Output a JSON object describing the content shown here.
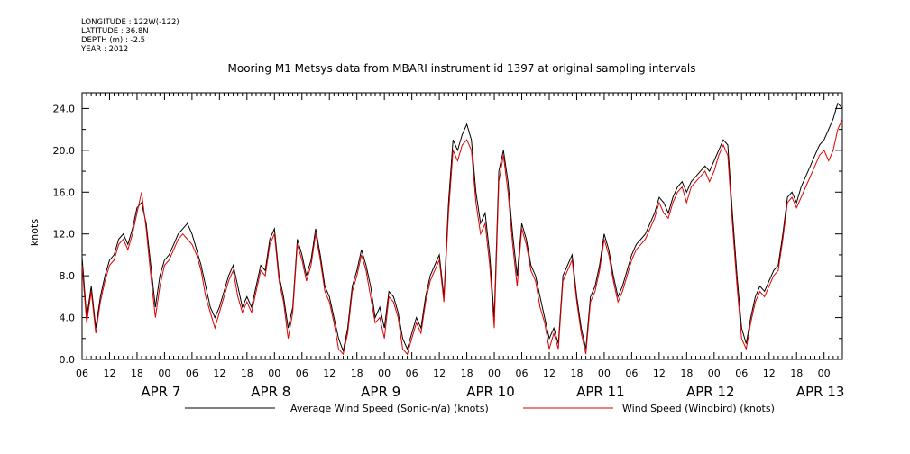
{
  "header": {
    "longitude": "LONGITUDE : 122W(-122)",
    "latitude": "LATITUDE : 36.8N",
    "depth": "DEPTH (m) : -2.5",
    "year": "YEAR : 2012"
  },
  "chart_data": {
    "type": "line",
    "title": "Mooring M1 Metsys data from MBARI instrument id 1397 at original sampling intervals",
    "ylabel": "knots",
    "xlabel": "",
    "ylim": [
      0,
      25.5
    ],
    "xlim": [
      0,
      166
    ],
    "x_unit_note": "hours",
    "yticks": [
      "0.0",
      "4.0",
      "8.0",
      "12.0",
      "16.0",
      "20.0",
      "24.0"
    ],
    "xtick_labels": [
      "06",
      "12",
      "18",
      "00",
      "06",
      "12",
      "18",
      "00",
      "06",
      "12",
      "18",
      "00",
      "06",
      "12",
      "18",
      "00",
      "06",
      "12",
      "18",
      "00",
      "06",
      "12",
      "18",
      "00",
      "06",
      "12",
      "18",
      "00"
    ],
    "date_labels": [
      "APR  7",
      "APR  8",
      "APR  9",
      "APR 10",
      "APR 11",
      "APR 12",
      "APR 13"
    ],
    "grid": false,
    "legend_position": "bottom",
    "series": [
      {
        "name": "Average Wind Speed (Sonic-n/a) (knots)",
        "color": "#000000",
        "x": [
          0,
          1,
          2,
          3,
          4,
          5,
          6,
          7,
          8,
          9,
          10,
          11,
          12,
          13,
          14,
          15,
          16,
          17,
          18,
          19,
          20,
          21,
          22,
          23,
          24,
          25,
          26,
          27,
          28,
          29,
          30,
          31,
          32,
          33,
          34,
          35,
          36,
          37,
          38,
          39,
          40,
          41,
          42,
          43,
          44,
          45,
          46,
          47,
          48,
          49,
          50,
          51,
          52,
          53,
          54,
          55,
          56,
          57,
          58,
          59,
          60,
          61,
          62,
          63,
          64,
          65,
          66,
          67,
          68,
          69,
          70,
          71,
          72,
          73,
          74,
          75,
          76,
          77,
          78,
          79,
          80,
          81,
          82,
          83,
          84,
          85,
          86,
          87,
          88,
          89,
          90,
          91,
          92,
          93,
          94,
          95,
          96,
          97,
          98,
          99,
          100,
          101,
          102,
          103,
          104,
          105,
          106,
          107,
          108,
          109,
          110,
          111,
          112,
          113,
          114,
          115,
          116,
          117,
          118,
          119,
          120,
          121,
          122,
          123,
          124,
          125,
          126,
          127,
          128,
          129,
          130,
          131,
          132,
          133,
          134,
          135,
          136,
          137,
          138,
          139,
          140,
          141,
          142,
          143,
          144,
          145,
          146,
          147,
          148,
          149,
          150,
          151,
          152,
          153,
          154,
          155,
          156,
          157,
          158,
          159,
          160,
          161,
          162,
          163,
          164,
          165,
          166
        ],
        "y": [
          9.8,
          4.0,
          7.0,
          3.0,
          6.0,
          8.0,
          9.5,
          10.0,
          11.5,
          12.0,
          11.0,
          12.5,
          14.5,
          15.0,
          13.0,
          9.0,
          5.0,
          8.0,
          9.5,
          10.0,
          11.0,
          12.0,
          12.5,
          13.0,
          12.0,
          10.5,
          9.0,
          7.0,
          5.0,
          4.0,
          5.0,
          6.5,
          8.0,
          9.0,
          7.0,
          5.0,
          6.0,
          5.0,
          7.0,
          9.0,
          8.5,
          11.5,
          12.5,
          8.0,
          6.0,
          3.0,
          5.0,
          11.5,
          10.0,
          8.0,
          9.5,
          12.5,
          10.0,
          7.0,
          6.0,
          4.0,
          2.0,
          0.8,
          3.0,
          7.0,
          8.5,
          10.5,
          9.0,
          7.0,
          4.0,
          5.0,
          3.0,
          6.5,
          6.0,
          4.5,
          2.0,
          1.0,
          2.5,
          4.0,
          3.0,
          6.0,
          8.0,
          9.0,
          10.0,
          6.0,
          15.0,
          21.0,
          20.0,
          21.5,
          22.5,
          21.0,
          16.0,
          13.0,
          14.0,
          10.0,
          4.0,
          18.0,
          20.0,
          17.0,
          12.0,
          8.0,
          13.0,
          11.5,
          9.0,
          8.0,
          6.0,
          4.0,
          2.0,
          3.0,
          1.5,
          8.0,
          9.0,
          10.0,
          6.0,
          3.0,
          1.0,
          6.0,
          7.0,
          9.0,
          12.0,
          10.5,
          8.0,
          6.0,
          7.0,
          8.5,
          10.0,
          11.0,
          11.5,
          12.0,
          13.0,
          14.0,
          15.5,
          15.0,
          14.0,
          15.5,
          16.5,
          17.0,
          16.0,
          17.0,
          17.5,
          18.0,
          18.5,
          18.0,
          19.0,
          20.0,
          21.0,
          20.5,
          14.0,
          8.0,
          3.0,
          1.5,
          4.0,
          6.0,
          7.0,
          6.5,
          7.5,
          8.5,
          9.0,
          12.0,
          15.5,
          16.0,
          15.0,
          16.5,
          17.5,
          18.5,
          19.5,
          20.5,
          21.0,
          22.0,
          23.0,
          24.5,
          24.0
        ]
      },
      {
        "name": "Wind Speed (Windbird) (knots)",
        "color": "#e00000",
        "x": [
          0,
          1,
          2,
          3,
          4,
          5,
          6,
          7,
          8,
          9,
          10,
          11,
          12,
          13,
          14,
          15,
          16,
          17,
          18,
          19,
          20,
          21,
          22,
          23,
          24,
          25,
          26,
          27,
          28,
          29,
          30,
          31,
          32,
          33,
          34,
          35,
          36,
          37,
          38,
          39,
          40,
          41,
          42,
          43,
          44,
          45,
          46,
          47,
          48,
          49,
          50,
          51,
          52,
          53,
          54,
          55,
          56,
          57,
          58,
          59,
          60,
          61,
          62,
          63,
          64,
          65,
          66,
          67,
          68,
          69,
          70,
          71,
          72,
          73,
          74,
          75,
          76,
          77,
          78,
          79,
          80,
          81,
          82,
          83,
          84,
          85,
          86,
          87,
          88,
          89,
          90,
          91,
          92,
          93,
          94,
          95,
          96,
          97,
          98,
          99,
          100,
          101,
          102,
          103,
          104,
          105,
          106,
          107,
          108,
          109,
          110,
          111,
          112,
          113,
          114,
          115,
          116,
          117,
          118,
          119,
          120,
          121,
          122,
          123,
          124,
          125,
          126,
          127,
          128,
          129,
          130,
          131,
          132,
          133,
          134,
          135,
          136,
          137,
          138,
          139,
          140,
          141,
          142,
          143,
          144,
          145,
          146,
          147,
          148,
          149,
          150,
          151,
          152,
          153,
          154,
          155,
          156,
          157,
          158,
          159,
          160,
          161,
          162,
          163,
          164,
          165,
          166
        ],
        "y": [
          9.0,
          3.5,
          6.5,
          2.5,
          5.5,
          7.5,
          9.0,
          9.5,
          11.0,
          11.5,
          10.5,
          12.0,
          14.0,
          16.0,
          12.5,
          8.0,
          4.0,
          7.0,
          9.0,
          9.5,
          10.5,
          11.5,
          12.0,
          11.5,
          11.0,
          10.0,
          8.5,
          6.0,
          4.5,
          3.0,
          4.5,
          6.0,
          7.5,
          8.5,
          6.0,
          4.5,
          5.5,
          4.5,
          6.5,
          8.5,
          8.0,
          11.0,
          12.0,
          7.5,
          5.5,
          2.0,
          4.5,
          11.0,
          9.5,
          7.5,
          9.0,
          12.0,
          9.5,
          6.5,
          5.5,
          3.5,
          1.0,
          0.5,
          2.5,
          6.5,
          8.0,
          10.0,
          8.5,
          6.0,
          3.5,
          4.0,
          2.0,
          6.0,
          5.5,
          4.0,
          1.0,
          0.5,
          2.0,
          3.5,
          2.5,
          5.5,
          7.5,
          8.5,
          9.5,
          5.5,
          14.0,
          20.0,
          19.0,
          20.5,
          21.0,
          20.0,
          15.0,
          12.0,
          13.0,
          9.0,
          3.0,
          17.0,
          19.5,
          16.0,
          11.0,
          7.0,
          12.5,
          11.0,
          8.5,
          7.5,
          5.0,
          3.5,
          1.0,
          2.5,
          1.0,
          7.5,
          8.5,
          9.5,
          5.5,
          2.5,
          0.5,
          5.5,
          6.5,
          8.5,
          11.5,
          10.0,
          7.5,
          5.5,
          6.5,
          8.0,
          9.5,
          10.5,
          11.0,
          11.5,
          12.5,
          13.5,
          15.0,
          14.0,
          13.5,
          15.0,
          16.0,
          16.5,
          15.0,
          16.5,
          17.0,
          17.5,
          18.0,
          17.0,
          18.0,
          19.5,
          20.5,
          19.5,
          13.0,
          7.0,
          2.0,
          1.0,
          3.5,
          5.5,
          6.5,
          6.0,
          7.0,
          8.0,
          8.5,
          11.5,
          15.0,
          15.5,
          14.5,
          15.5,
          16.5,
          17.5,
          18.5,
          19.5,
          20.0,
          19.0,
          20.0,
          22.0,
          23.0
        ]
      }
    ]
  }
}
